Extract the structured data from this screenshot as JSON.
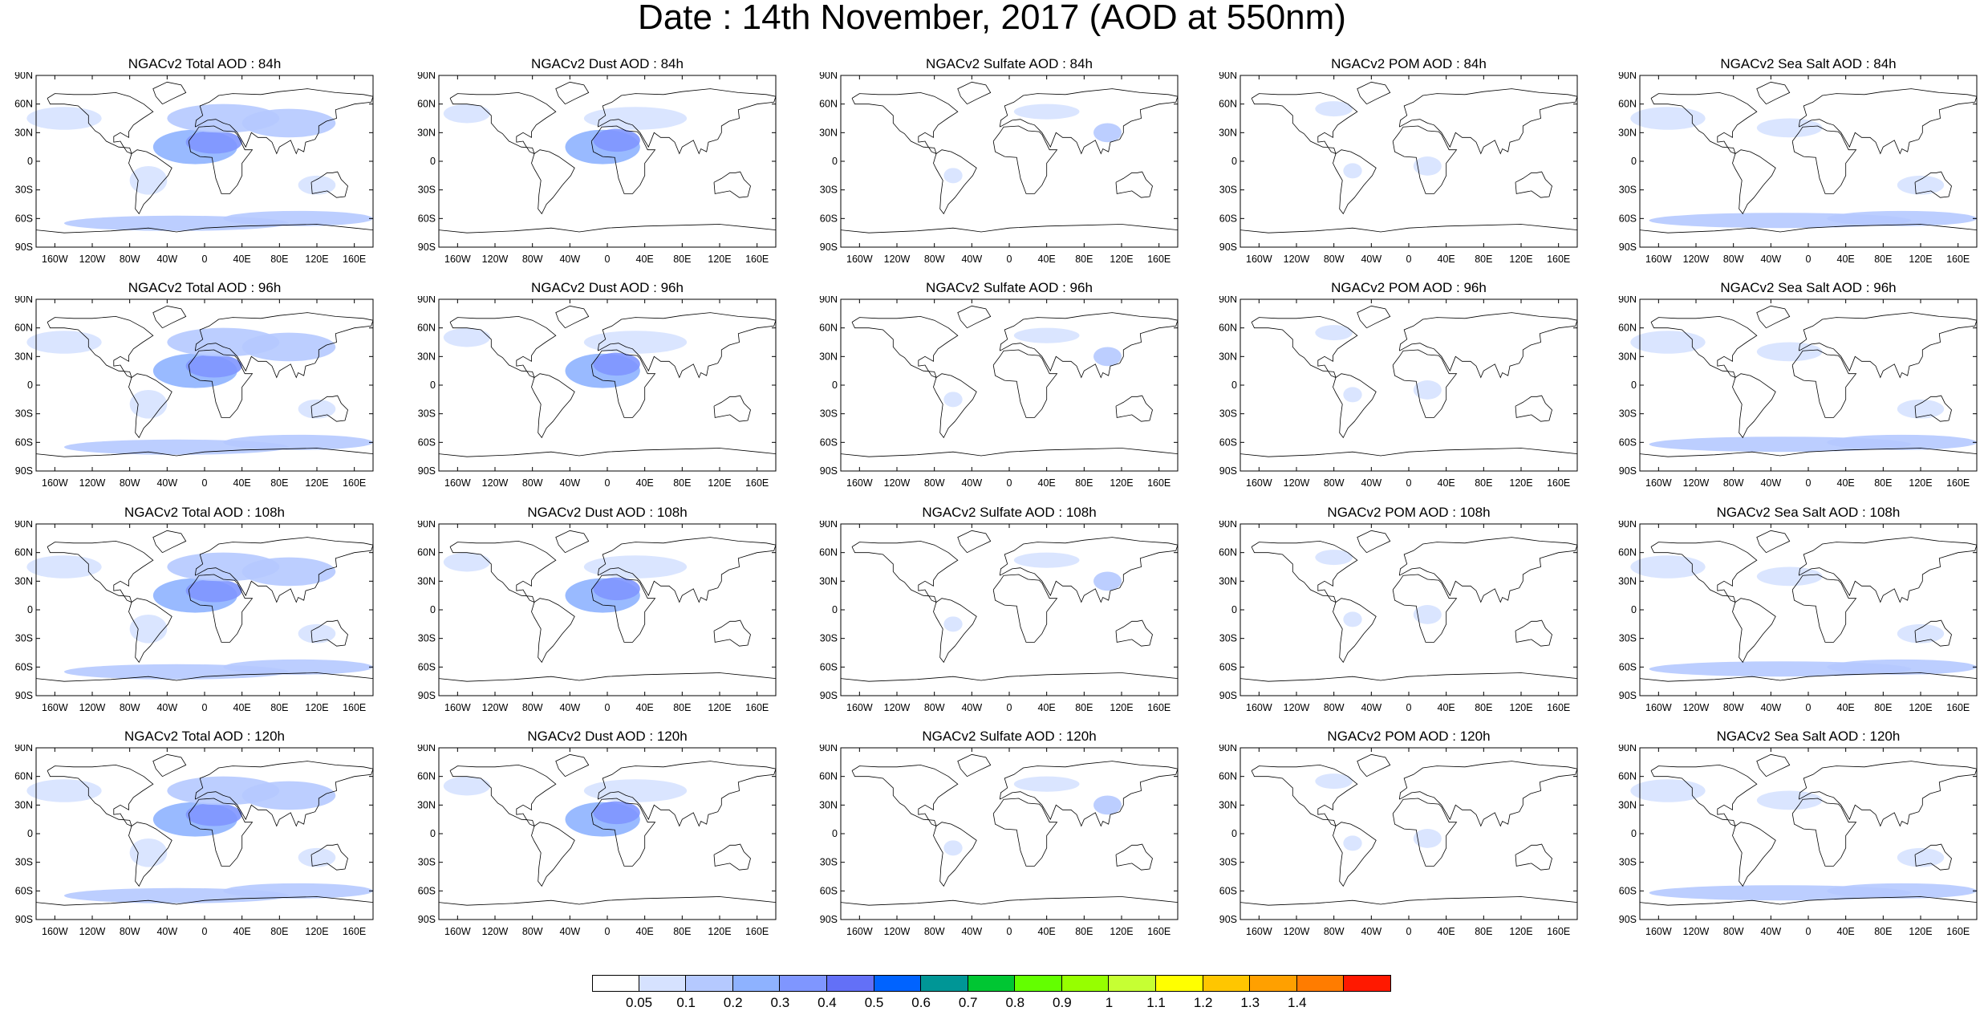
{
  "title": "Date : 14th November, 2017 (AOD at 550nm)",
  "panel_titles": [
    [
      "NGACv2 Total AOD : 84h",
      "NGACv2 Dust AOD : 84h",
      "NGACv2 Sulfate AOD : 84h",
      "NGACv2 POM AOD : 84h",
      "NGACv2 Sea Salt AOD : 84h"
    ],
    [
      "NGACv2 Total AOD : 96h",
      "NGACv2 Dust AOD : 96h",
      "NGACv2 Sulfate AOD : 96h",
      "NGACv2 POM AOD : 96h",
      "NGACv2 Sea Salt AOD : 96h"
    ],
    [
      "NGACv2 Total AOD : 108h",
      "NGACv2 Dust AOD : 108h",
      "NGACv2 Sulfate AOD : 108h",
      "NGACv2 POM AOD : 108h",
      "NGACv2 Sea Salt AOD : 108h"
    ],
    [
      "NGACv2 Total AOD : 120h",
      "NGACv2 Dust AOD : 120h",
      "NGACv2 Sulfate AOD : 120h",
      "NGACv2 POM AOD : 120h",
      "NGACv2 Sea Salt  AOD : 120h"
    ]
  ],
  "lat_labels": [
    "90N",
    "60N",
    "30N",
    "0",
    "30S",
    "60S",
    "90S"
  ],
  "lon_labels": [
    "160W",
    "120W",
    "80W",
    "40W",
    "0",
    "40E",
    "80E",
    "120E",
    "160E"
  ],
  "lon_values": [
    -160,
    -120,
    -80,
    -40,
    0,
    40,
    80,
    120,
    160
  ],
  "lat_values": [
    90,
    60,
    30,
    0,
    -30,
    -60,
    -90
  ],
  "colorbar": {
    "labels": [
      "0.05",
      "0.1",
      "0.2",
      "0.3",
      "0.4",
      "0.5",
      "0.6",
      "0.7",
      "0.8",
      "0.9",
      "1",
      "1.1",
      "1.2",
      "1.3",
      "1.4"
    ],
    "colors": [
      "#ffffff",
      "#d6e2ff",
      "#b5c9ff",
      "#8eb2ff",
      "#7f96ff",
      "#6370f7",
      "#0063ff",
      "#009696",
      "#00c633",
      "#63ff00",
      "#96ff00",
      "#c6ff33",
      "#ffff00",
      "#ffc600",
      "#ffa000",
      "#ff7c00",
      "#ff1900"
    ]
  }
}
